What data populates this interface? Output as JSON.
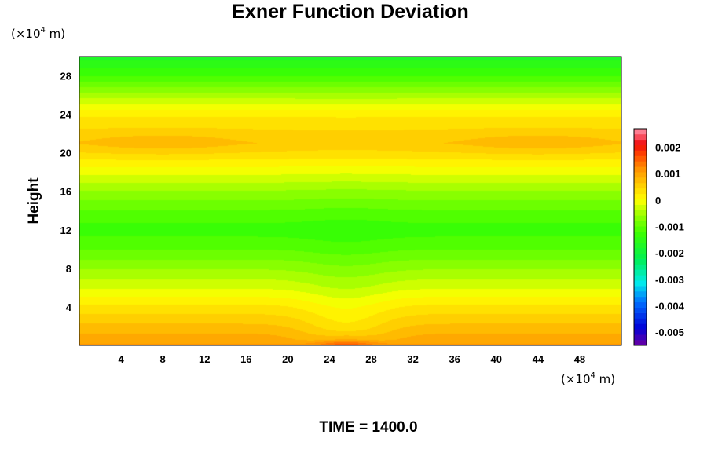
{
  "chart_data": {
    "type": "heatmap",
    "title": "Exner Function Deviation",
    "ylabel": "Height",
    "xlabel": "",
    "x_unit_label": {
      "prefix": "(×10",
      "exp": "4",
      "suffix": " m)"
    },
    "y_unit_label": {
      "prefix": "(×10",
      "exp": "4",
      "suffix": " m)"
    },
    "footer": "TIME = 1400.0",
    "xlim": [
      0,
      52
    ],
    "ylim": [
      0,
      30
    ],
    "x_ticks": [
      4,
      8,
      12,
      16,
      20,
      24,
      28,
      32,
      36,
      40,
      44,
      48
    ],
    "x_tick_labels": [
      "4",
      "8",
      "12",
      "16",
      "20",
      "24",
      "28",
      "32",
      "36",
      "40",
      "44",
      "48"
    ],
    "y_ticks": [
      4,
      8,
      12,
      16,
      20,
      24,
      28
    ],
    "y_tick_labels": [
      "4",
      "8",
      "12",
      "16",
      "20",
      "24",
      "28"
    ],
    "colorbar": {
      "range": [
        -0.0055,
        0.0027
      ],
      "ticks": [
        0.002,
        0.001,
        0,
        -0.001,
        -0.002,
        -0.003,
        -0.004,
        -0.005
      ],
      "tick_labels": [
        "0.002",
        "0.001",
        "0",
        "-0.001",
        "-0.002",
        "-0.003",
        "-0.004",
        "-0.005"
      ]
    },
    "vertical_profile": {
      "height": [
        0,
        1,
        2,
        3,
        4,
        6,
        8,
        10,
        12,
        14,
        16,
        18,
        20,
        21,
        22,
        24,
        26,
        28,
        30
      ],
      "value": [
        0.0011,
        0.0009,
        0.0007,
        0.0005,
        0.0003,
        -0.0002,
        -0.0006,
        -0.001,
        -0.0013,
        -0.001,
        -0.0006,
        -0.0001,
        0.0004,
        0.0006,
        0.0005,
        0.0002,
        -0.0005,
        -0.0012,
        -0.0017
      ]
    },
    "features": {
      "surface_max": {
        "x": 25.6,
        "y": 0,
        "value": 0.0017
      },
      "central_dip": {
        "x": 25.6,
        "height_scale": 5.5,
        "width": 3.0,
        "amplitude": -0.0006
      },
      "upper_side_maxima": {
        "x": [
          8,
          44
        ],
        "y": 21,
        "amplitude": 0.0002
      }
    }
  }
}
